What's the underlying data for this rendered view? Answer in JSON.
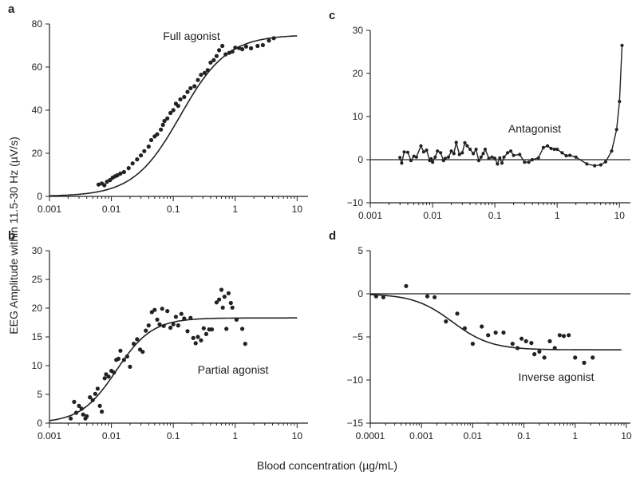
{
  "figure": {
    "ylabel": "EEG Amplitude within 11.5-30 Hz (µV/s)",
    "xlabel": "Blood concentration (µg/mL)"
  },
  "chart_data": [
    {
      "panel": "a",
      "type": "scatter",
      "annotation": "Full agonist",
      "xscale": "log",
      "xlim": [
        0.001,
        15
      ],
      "ylim": [
        0,
        80
      ],
      "xticks": [
        "0.001",
        "0.01",
        "0.1",
        "1",
        "10"
      ],
      "yticks": [
        "0",
        "20",
        "40",
        "60",
        "80"
      ],
      "zero_line": false,
      "fit": {
        "model": "hill",
        "bottom": 0,
        "top": 75,
        "ec50": 0.13,
        "slope": 1.15,
        "x_range": [
          0.001,
          10
        ]
      },
      "points": [
        [
          0.0062,
          5.5
        ],
        [
          0.007,
          6.0
        ],
        [
          0.0077,
          5.2
        ],
        [
          0.0085,
          6.8
        ],
        [
          0.0095,
          7.6
        ],
        [
          0.0105,
          8.7
        ],
        [
          0.0115,
          9.3
        ],
        [
          0.0125,
          9.8
        ],
        [
          0.014,
          10.6
        ],
        [
          0.016,
          11.3
        ],
        [
          0.019,
          13.1
        ],
        [
          0.022,
          15.3
        ],
        [
          0.026,
          17.2
        ],
        [
          0.03,
          19.0
        ],
        [
          0.034,
          21.0
        ],
        [
          0.04,
          23.1
        ],
        [
          0.044,
          26.1
        ],
        [
          0.05,
          27.8
        ],
        [
          0.055,
          28.8
        ],
        [
          0.063,
          31.0
        ],
        [
          0.068,
          33.2
        ],
        [
          0.072,
          35.0
        ],
        [
          0.08,
          36.2
        ],
        [
          0.09,
          38.7
        ],
        [
          0.1,
          40.0
        ],
        [
          0.11,
          43.0
        ],
        [
          0.12,
          42.0
        ],
        [
          0.13,
          45.0
        ],
        [
          0.15,
          46.1
        ],
        [
          0.17,
          48.5
        ],
        [
          0.19,
          50.2
        ],
        [
          0.22,
          51.1
        ],
        [
          0.25,
          54.0
        ],
        [
          0.28,
          56.4
        ],
        [
          0.32,
          57.3
        ],
        [
          0.36,
          58.6
        ],
        [
          0.4,
          62.1
        ],
        [
          0.45,
          63.2
        ],
        [
          0.5,
          65.1
        ],
        [
          0.55,
          67.8
        ],
        [
          0.62,
          69.8
        ],
        [
          0.7,
          65.9
        ],
        [
          0.8,
          66.6
        ],
        [
          0.9,
          67.2
        ],
        [
          1.0,
          69.0
        ],
        [
          1.15,
          68.8
        ],
        [
          1.3,
          68.3
        ],
        [
          1.5,
          69.5
        ],
        [
          1.8,
          68.7
        ],
        [
          2.3,
          69.8
        ],
        [
          2.8,
          70.2
        ],
        [
          3.5,
          72.3
        ],
        [
          4.2,
          73.4
        ]
      ]
    },
    {
      "panel": "b",
      "type": "scatter",
      "annotation": "Partial agonist",
      "xscale": "log",
      "xlim": [
        0.001,
        15
      ],
      "ylim": [
        0,
        30
      ],
      "xticks": [
        "0.001",
        "0.01",
        "0.1",
        "1",
        "10"
      ],
      "yticks": [
        "0",
        "5",
        "10",
        "15",
        "20",
        "25",
        "30"
      ],
      "zero_line": false,
      "fit": {
        "model": "hill",
        "bottom": 0,
        "top": 18.3,
        "ec50": 0.012,
        "slope": 1.5,
        "x_range": [
          0.001,
          10
        ]
      },
      "points": [
        [
          0.0022,
          0.8
        ],
        [
          0.0025,
          3.7
        ],
        [
          0.0027,
          1.8
        ],
        [
          0.003,
          3.0
        ],
        [
          0.0033,
          2.5
        ],
        [
          0.0035,
          1.5
        ],
        [
          0.0038,
          0.8
        ],
        [
          0.004,
          1.2
        ],
        [
          0.0045,
          4.5
        ],
        [
          0.005,
          4.0
        ],
        [
          0.0055,
          5.1
        ],
        [
          0.006,
          6.0
        ],
        [
          0.0065,
          3.0
        ],
        [
          0.007,
          2.0
        ],
        [
          0.0078,
          7.8
        ],
        [
          0.0082,
          8.5
        ],
        [
          0.009,
          8.1
        ],
        [
          0.01,
          9.1
        ],
        [
          0.011,
          8.8
        ],
        [
          0.012,
          11.0
        ],
        [
          0.013,
          11.2
        ],
        [
          0.014,
          12.6
        ],
        [
          0.016,
          11.0
        ],
        [
          0.018,
          11.6
        ],
        [
          0.02,
          9.8
        ],
        [
          0.023,
          13.8
        ],
        [
          0.026,
          14.6
        ],
        [
          0.029,
          12.8
        ],
        [
          0.032,
          12.4
        ],
        [
          0.036,
          16.1
        ],
        [
          0.04,
          17.0
        ],
        [
          0.045,
          19.3
        ],
        [
          0.05,
          19.7
        ],
        [
          0.055,
          18.0
        ],
        [
          0.06,
          17.2
        ],
        [
          0.066,
          19.9
        ],
        [
          0.07,
          16.9
        ],
        [
          0.08,
          19.5
        ],
        [
          0.09,
          16.6
        ],
        [
          0.1,
          17.2
        ],
        [
          0.11,
          18.5
        ],
        [
          0.12,
          17.0
        ],
        [
          0.135,
          19.0
        ],
        [
          0.15,
          18.2
        ],
        [
          0.17,
          16.0
        ],
        [
          0.19,
          18.3
        ],
        [
          0.21,
          14.8
        ],
        [
          0.23,
          13.9
        ],
        [
          0.25,
          15.0
        ],
        [
          0.28,
          14.4
        ],
        [
          0.31,
          16.5
        ],
        [
          0.34,
          15.5
        ],
        [
          0.38,
          16.3
        ],
        [
          0.42,
          16.3
        ],
        [
          0.5,
          21.0
        ],
        [
          0.55,
          21.5
        ],
        [
          0.6,
          23.2
        ],
        [
          0.63,
          20.1
        ],
        [
          0.67,
          22.0
        ],
        [
          0.72,
          16.4
        ],
        [
          0.78,
          22.6
        ],
        [
          0.85,
          20.9
        ],
        [
          0.9,
          20.1
        ],
        [
          1.05,
          18.0
        ],
        [
          1.3,
          16.4
        ],
        [
          1.45,
          13.8
        ]
      ]
    },
    {
      "panel": "c",
      "type": "line",
      "annotation": "Antagonist",
      "xscale": "log",
      "xlim": [
        0.001,
        15
      ],
      "ylim": [
        -10,
        30
      ],
      "xticks": [
        "0.001",
        "0.01",
        "0.1",
        "1",
        "10"
      ],
      "yticks": [
        "−10",
        "0",
        "10",
        "20",
        "30"
      ],
      "zero_line": true,
      "points": [
        [
          0.003,
          0.5
        ],
        [
          0.0032,
          -0.8
        ],
        [
          0.0035,
          1.8
        ],
        [
          0.004,
          1.7
        ],
        [
          0.0045,
          -0.2
        ],
        [
          0.005,
          0.8
        ],
        [
          0.0055,
          0.6
        ],
        [
          0.0065,
          3.2
        ],
        [
          0.0072,
          1.8
        ],
        [
          0.008,
          2.2
        ],
        [
          0.009,
          -0.2
        ],
        [
          0.0095,
          0.2
        ],
        [
          0.01,
          -0.6
        ],
        [
          0.011,
          0.6
        ],
        [
          0.012,
          2.0
        ],
        [
          0.0135,
          1.6
        ],
        [
          0.015,
          -0.2
        ],
        [
          0.016,
          0.3
        ],
        [
          0.018,
          0.6
        ],
        [
          0.02,
          2.0
        ],
        [
          0.022,
          1.4
        ],
        [
          0.024,
          4.0
        ],
        [
          0.027,
          1.2
        ],
        [
          0.03,
          1.6
        ],
        [
          0.033,
          3.9
        ],
        [
          0.036,
          3.2
        ],
        [
          0.04,
          2.4
        ],
        [
          0.045,
          1.4
        ],
        [
          0.05,
          2.4
        ],
        [
          0.055,
          -0.2
        ],
        [
          0.06,
          0.6
        ],
        [
          0.065,
          1.4
        ],
        [
          0.07,
          2.4
        ],
        [
          0.08,
          0.3
        ],
        [
          0.09,
          0.6
        ],
        [
          0.1,
          0.3
        ],
        [
          0.11,
          -1.0
        ],
        [
          0.12,
          0.4
        ],
        [
          0.13,
          -0.8
        ],
        [
          0.14,
          0.6
        ],
        [
          0.16,
          1.6
        ],
        [
          0.18,
          2.0
        ],
        [
          0.2,
          1.0
        ],
        [
          0.25,
          1.2
        ],
        [
          0.3,
          -0.6
        ],
        [
          0.35,
          -0.6
        ],
        [
          0.4,
          0.0
        ],
        [
          0.5,
          0.4
        ],
        [
          0.6,
          2.8
        ],
        [
          0.7,
          3.2
        ],
        [
          0.8,
          2.6
        ],
        [
          0.9,
          2.4
        ],
        [
          1.0,
          2.4
        ],
        [
          1.2,
          1.6
        ],
        [
          1.4,
          0.9
        ],
        [
          1.6,
          1.0
        ],
        [
          2.0,
          0.6
        ],
        [
          3.0,
          -1.0
        ],
        [
          4.0,
          -1.4
        ],
        [
          5.0,
          -1.2
        ],
        [
          6.0,
          -0.5
        ],
        [
          7.5,
          2.0
        ],
        [
          9.0,
          7.0
        ],
        [
          10.0,
          13.5
        ],
        [
          11.0,
          26.5
        ]
      ]
    },
    {
      "panel": "d",
      "type": "scatter",
      "annotation": "Inverse agonist",
      "xscale": "log",
      "xlim": [
        0.0001,
        12
      ],
      "ylim": [
        -15,
        5
      ],
      "xticks": [
        "0.0001",
        "0.001",
        "0.01",
        "0.1",
        "1",
        "10"
      ],
      "yticks": [
        "−15",
        "−10",
        "−5",
        "0",
        "5"
      ],
      "zero_line": true,
      "fit": {
        "model": "hill",
        "bottom": 0,
        "top": -6.5,
        "ec50": 0.004,
        "slope": 1.15,
        "x_range": [
          0.0001,
          8
        ]
      },
      "points": [
        [
          0.00013,
          -0.3
        ],
        [
          0.00018,
          -0.4
        ],
        [
          0.0005,
          0.9
        ],
        [
          0.0013,
          -0.3
        ],
        [
          0.0018,
          -0.4
        ],
        [
          0.003,
          -3.2
        ],
        [
          0.005,
          -2.3
        ],
        [
          0.007,
          -4.0
        ],
        [
          0.01,
          -5.8
        ],
        [
          0.015,
          -3.8
        ],
        [
          0.02,
          -4.8
        ],
        [
          0.028,
          -4.5
        ],
        [
          0.04,
          -4.5
        ],
        [
          0.06,
          -5.8
        ],
        [
          0.075,
          -6.3
        ],
        [
          0.09,
          -5.2
        ],
        [
          0.11,
          -5.5
        ],
        [
          0.14,
          -5.7
        ],
        [
          0.16,
          -7.0
        ],
        [
          0.2,
          -6.7
        ],
        [
          0.25,
          -7.4
        ],
        [
          0.32,
          -5.5
        ],
        [
          0.4,
          -6.3
        ],
        [
          0.5,
          -4.8
        ],
        [
          0.6,
          -4.9
        ],
        [
          0.75,
          -4.8
        ],
        [
          1.0,
          -7.4
        ],
        [
          1.5,
          -8.0
        ],
        [
          2.2,
          -7.4
        ]
      ]
    }
  ]
}
